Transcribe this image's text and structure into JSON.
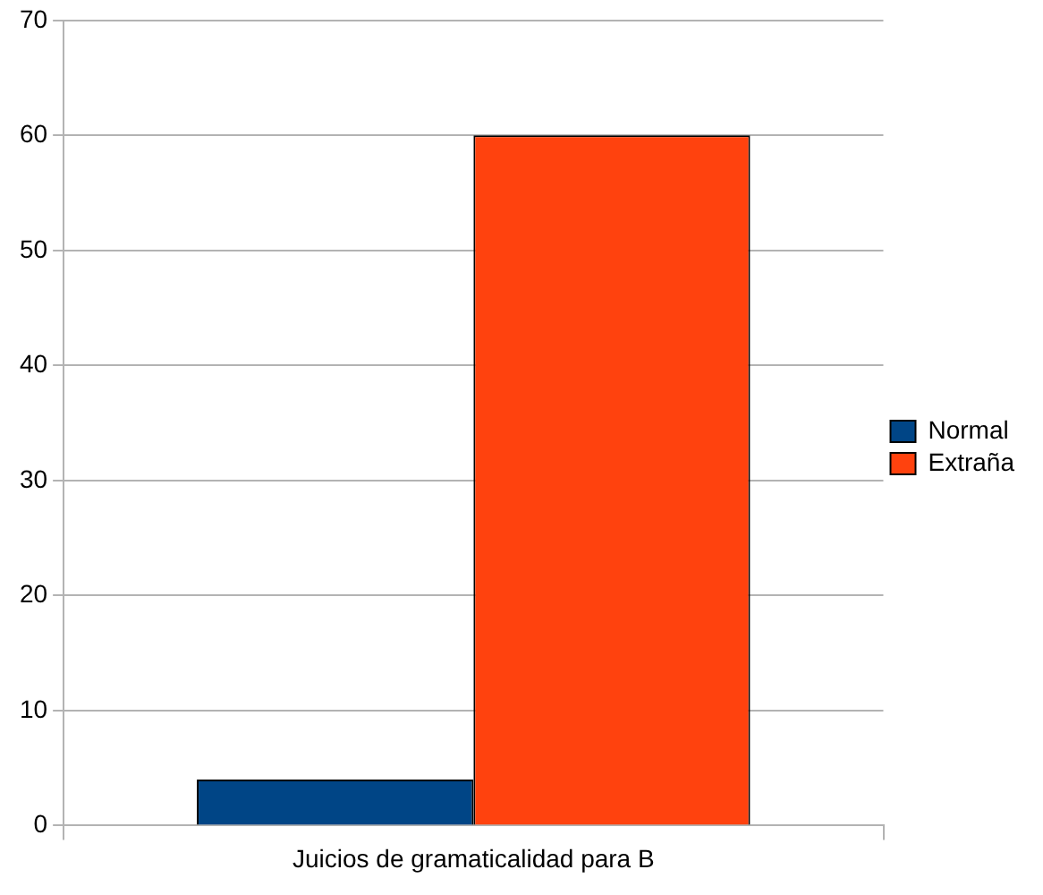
{
  "chart_data": {
    "type": "bar",
    "categories": [
      "Juicios de gramaticalidad para B"
    ],
    "series": [
      {
        "name": "Normal",
        "color": "#004586",
        "values": [
          4
        ]
      },
      {
        "name": "Extraña",
        "color": "#ff420e",
        "values": [
          60
        ]
      }
    ],
    "ylim": [
      0,
      70
    ],
    "yticks": [
      0,
      10,
      20,
      30,
      40,
      50,
      60,
      70
    ],
    "grid": "y",
    "legend": "right"
  }
}
